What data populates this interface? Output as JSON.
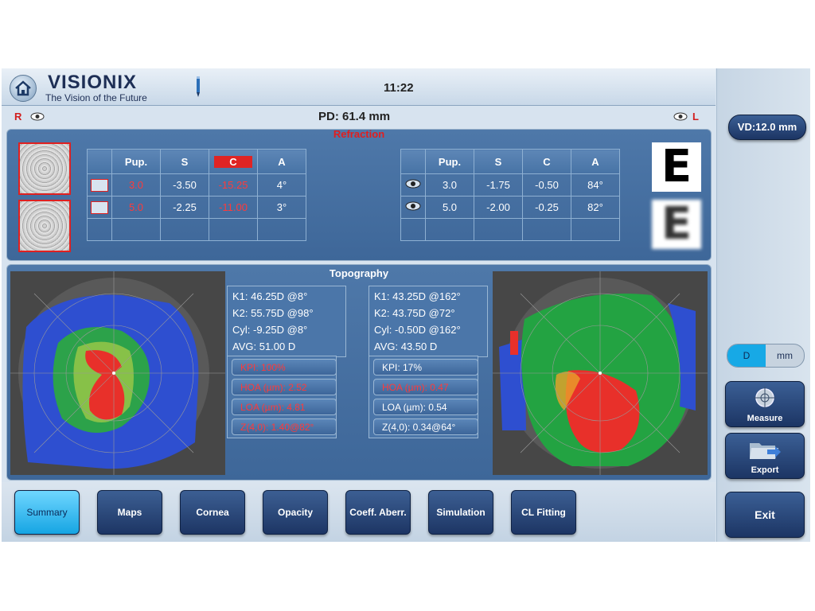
{
  "header": {
    "brand": "VISIONIX",
    "tagline": "The Vision of the Future",
    "time": "11:22"
  },
  "pd_row": {
    "right_eye": "R",
    "pd": "PD: 61.4 mm",
    "left_eye": "L"
  },
  "refraction": {
    "title": "Refraction",
    "headers": [
      "Pup.",
      "S",
      "C",
      "A"
    ],
    "right": [
      {
        "pup": "3.0",
        "s": "-3.50",
        "c": "-15.25",
        "a": "4°"
      },
      {
        "pup": "5.0",
        "s": "-2.25",
        "c": "-11.00",
        "a": "3°"
      }
    ],
    "left": [
      {
        "pup": "3.0",
        "s": "-1.75",
        "c": "-0.50",
        "a": "84°"
      },
      {
        "pup": "5.0",
        "s": "-2.00",
        "c": "-0.25",
        "a": "82°"
      }
    ],
    "e_chart": [
      "E",
      "E"
    ]
  },
  "topography": {
    "title": "Topography",
    "right": {
      "k1": "K1:   46.25D @8°",
      "k2": "K2:   55.75D @98°",
      "cyl": "Cyl:   -9.25D @8°",
      "avg": "AVG: 51.00 D",
      "stats": [
        "KPI:           100%",
        "HOA (µm): 2.52",
        "LOA (µm): 4.81",
        "Z(4,0): 1.40@82°"
      ]
    },
    "left": {
      "k1": "K1:   43.25D  @162°",
      "k2": "K2:   43.75D  @72°",
      "cyl": "Cyl:  -0.50D @162°",
      "avg": "AVG: 43.50 D",
      "stats": [
        "KPI:           17%",
        "HOA (µm): 0.47",
        "LOA (µm):  0.54",
        "Z(4,0): 0.34@64°"
      ]
    }
  },
  "sidebar": {
    "vd": "VD:12.0 mm",
    "unit_d": "D",
    "unit_mm": "mm",
    "measure": "Measure",
    "export": "Export",
    "exit": "Exit"
  },
  "tabs": [
    {
      "label": "Summary",
      "active": true
    },
    {
      "label": "Maps"
    },
    {
      "label": "Cornea"
    },
    {
      "label": "Opacity"
    },
    {
      "label": "Coeff. Aberr."
    },
    {
      "label": "Simulation"
    },
    {
      "label": "CL Fitting"
    }
  ],
  "colors": {
    "accent": "#17a9e6",
    "alert": "#e02424",
    "panel": "#4773a5",
    "button": "#1d3564"
  }
}
